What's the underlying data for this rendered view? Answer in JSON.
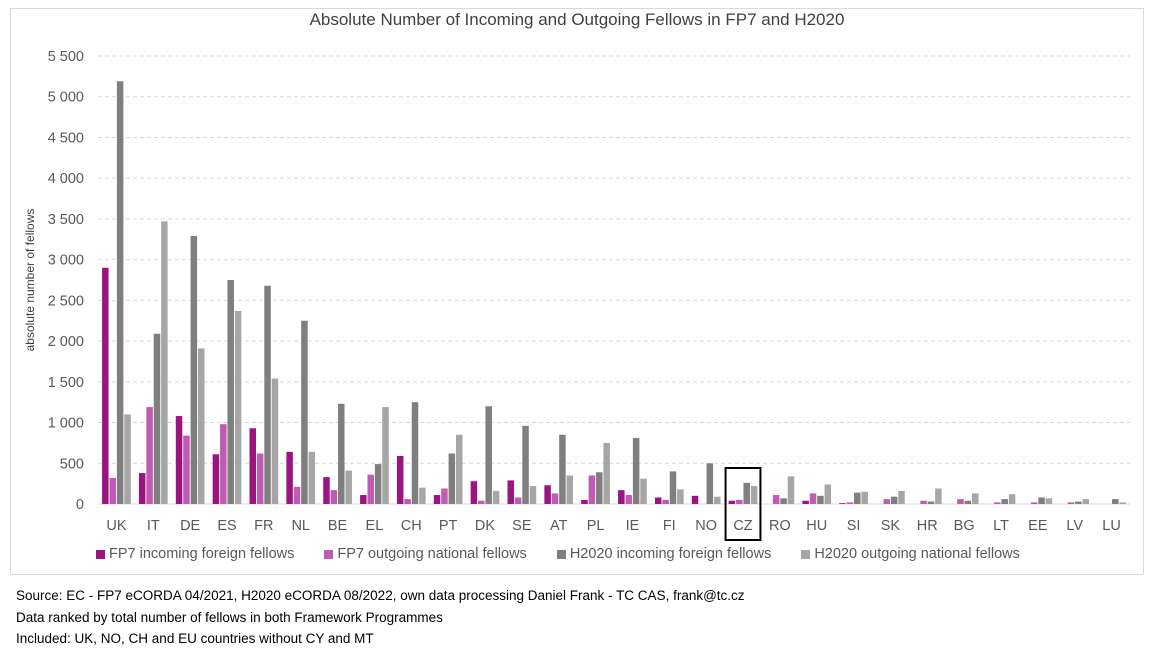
{
  "chart_data": {
    "type": "bar",
    "title": "Absolute Number of Incoming and Outgoing Fellows in FP7 and H2020",
    "ylabel": "absolute number of fellows",
    "ylim": [
      0,
      5500
    ],
    "yticks": [
      "0",
      "500",
      "1 000",
      "1 500",
      "2 000",
      "2 500",
      "3 000",
      "3 500",
      "4 000",
      "4 500",
      "5 000",
      "5 500"
    ],
    "grid": true,
    "legend_position": "bottom",
    "categories": [
      "UK",
      "IT",
      "DE",
      "ES",
      "FR",
      "NL",
      "BE",
      "EL",
      "CH",
      "PT",
      "DK",
      "SE",
      "AT",
      "PL",
      "IE",
      "FI",
      "NO",
      "CZ",
      "RO",
      "HU",
      "SI",
      "SK",
      "HR",
      "BG",
      "LT",
      "EE",
      "LV",
      "LU"
    ],
    "highlighted_category": "CZ",
    "series": [
      {
        "name": "FP7 incoming foreign fellows",
        "color": "#9b1580",
        "values": [
          2900,
          380,
          1080,
          610,
          930,
          640,
          330,
          110,
          590,
          110,
          280,
          290,
          230,
          50,
          170,
          80,
          100,
          40,
          0,
          40,
          10,
          0,
          0,
          0,
          0,
          0,
          0,
          0
        ]
      },
      {
        "name": "FP7 outgoing national fellows",
        "color": "#bf5bb1",
        "values": [
          320,
          1190,
          840,
          980,
          620,
          210,
          170,
          360,
          60,
          190,
          40,
          80,
          130,
          350,
          110,
          50,
          0,
          50,
          110,
          130,
          20,
          60,
          40,
          60,
          20,
          20,
          20,
          0
        ]
      },
      {
        "name": "H2020 incoming foreign fellows",
        "color": "#7f7f7f",
        "values": [
          5190,
          2090,
          3290,
          2750,
          2680,
          2250,
          1230,
          490,
          1250,
          620,
          1200,
          960,
          850,
          390,
          810,
          400,
          500,
          260,
          70,
          100,
          140,
          90,
          30,
          40,
          60,
          80,
          30,
          60
        ]
      },
      {
        "name": "H2020 outgoing national fellows",
        "color": "#a6a6a6",
        "values": [
          1100,
          3470,
          1910,
          2370,
          1540,
          640,
          410,
          1190,
          200,
          850,
          160,
          220,
          350,
          750,
          310,
          180,
          90,
          220,
          340,
          240,
          150,
          160,
          190,
          130,
          120,
          70,
          60,
          20
        ]
      }
    ]
  },
  "notes": [
    "Source: EC -  FP7 eCORDA 04/2021, H2020 eCORDA 08/2022, own data processing Daniel Frank - TC CAS, frank@tc.cz",
    "Data ranked by total number of fellows in both Framework Programmes",
    "Included: UK, NO, CH and EU countries without CY and MT"
  ]
}
